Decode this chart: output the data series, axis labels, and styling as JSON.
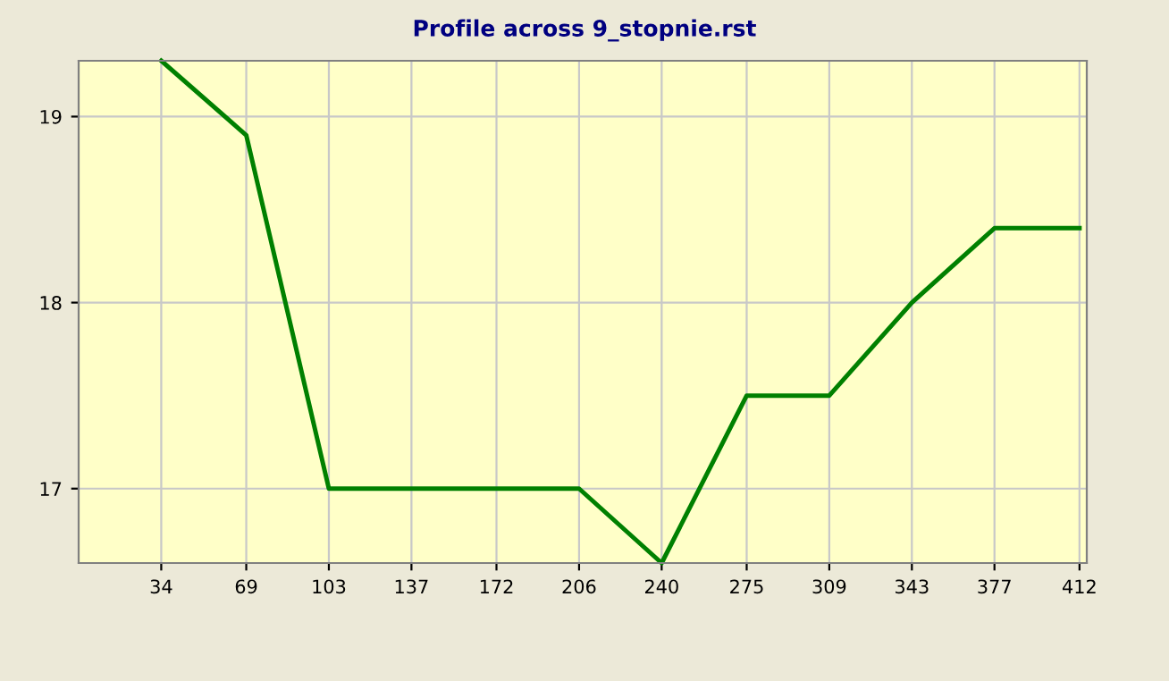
{
  "chart_data": {
    "type": "line",
    "title": "Profile across 9_stopnie.rst",
    "x": [
      34,
      69,
      103,
      206,
      240,
      275,
      309,
      343,
      377,
      412
    ],
    "series": [
      {
        "color": "#008000",
        "values": [
          19.3,
          18.9,
          17.0,
          17.0,
          16.6,
          17.5,
          17.5,
          18.0,
          18.4,
          18.4
        ]
      }
    ],
    "xlim": [
      0,
      415
    ],
    "xticks": [
      34,
      69,
      103,
      137,
      172,
      206,
      240,
      275,
      309,
      343,
      377,
      412
    ],
    "ylim": [
      16.6,
      19.3
    ],
    "yticks": [
      17,
      18,
      19
    ],
    "grid": true,
    "marker": "none",
    "line_style": "solid"
  }
}
